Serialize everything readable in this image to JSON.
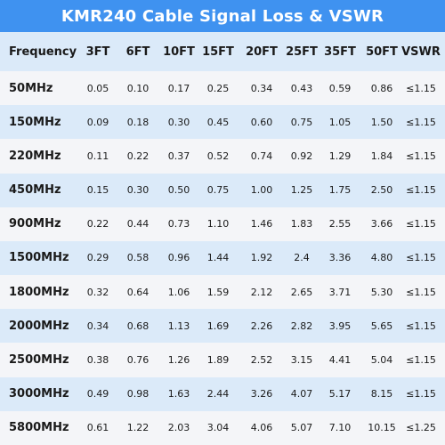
{
  "title": "KMR240 Cable Signal Loss & VSWR",
  "colors": {
    "title_bar": "#3f92f0",
    "row_blue": "#dbeaf9",
    "row_light": "#f4f5f8",
    "text": "#1a1a1a"
  },
  "table": {
    "headers": [
      "Frequency",
      "3FT",
      "6FT",
      "10FT",
      "15FT",
      "20FT",
      "25FT",
      "35FT",
      "50FT",
      "VSWR"
    ],
    "rows": [
      [
        "50MHz",
        "0.05",
        "0.10",
        "0.17",
        "0.25",
        "0.34",
        "0.43",
        "0.59",
        "0.86",
        "≤1.15"
      ],
      [
        "150MHz",
        "0.09",
        "0.18",
        "0.30",
        "0.45",
        "0.60",
        "0.75",
        "1.05",
        "1.50",
        "≤1.15"
      ],
      [
        "220MHz",
        "0.11",
        "0.22",
        "0.37",
        "0.52",
        "0.74",
        "0.92",
        "1.29",
        "1.84",
        "≤1.15"
      ],
      [
        "450MHz",
        "0.15",
        "0.30",
        "0.50",
        "0.75",
        "1.00",
        "1.25",
        "1.75",
        "2.50",
        "≤1.15"
      ],
      [
        "900MHz",
        "0.22",
        "0.44",
        "0.73",
        "1.10",
        "1.46",
        "1.83",
        "2.55",
        "3.66",
        "≤1.15"
      ],
      [
        "1500MHz",
        "0.29",
        "0.58",
        "0.96",
        "1.44",
        "1.92",
        "2.4",
        "3.36",
        "4.80",
        "≤1.15"
      ],
      [
        "1800MHz",
        "0.32",
        "0.64",
        "1.06",
        "1.59",
        "2.12",
        "2.65",
        "3.71",
        "5.30",
        "≤1.15"
      ],
      [
        "2000MHz",
        "0.34",
        "0.68",
        "1.13",
        "1.69",
        "2.26",
        "2.82",
        "3.95",
        "5.65",
        "≤1.15"
      ],
      [
        "2500MHz",
        "0.38",
        "0.76",
        "1.26",
        "1.89",
        "2.52",
        "3.15",
        "4.41",
        "5.04",
        "≤1.15"
      ],
      [
        "3000MHz",
        "0.49",
        "0.98",
        "1.63",
        "2.44",
        "3.26",
        "4.07",
        "5.17",
        "8.15",
        "≤1.15"
      ],
      [
        "5800MHz",
        "0.61",
        "1.22",
        "2.03",
        "3.04",
        "4.06",
        "5.07",
        "7.10",
        "10.15",
        "≤1.25"
      ]
    ]
  }
}
